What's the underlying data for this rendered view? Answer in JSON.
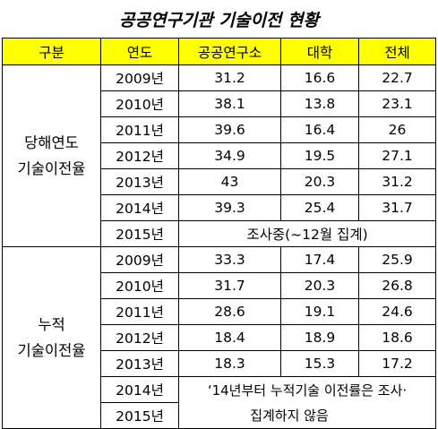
{
  "title": "공공연구기관 기술이전 현황",
  "headers": [
    "구분",
    "연도",
    "공공연구소",
    "대학",
    "전체"
  ],
  "group1": {
    "label_line1": "당해연도",
    "label_line2": "기술이전율",
    "rows": [
      {
        "year": "2009년",
        "v1": "31.2",
        "v2": "16.6",
        "v3": "22.7"
      },
      {
        "year": "2010년",
        "v1": "38.1",
        "v2": "13.8",
        "v3": "23.1"
      },
      {
        "year": "2011년",
        "v1": "39.6",
        "v2": "16.4",
        "v3": "26"
      },
      {
        "year": "2012년",
        "v1": "34.9",
        "v2": "19.5",
        "v3": "27.1"
      },
      {
        "year": "2013년",
        "v1": "43",
        "v2": "20.3",
        "v3": "31.2"
      },
      {
        "year": "2014년",
        "v1": "39.3",
        "v2": "25.4",
        "v3": "31.7"
      }
    ],
    "last_year": "2015년",
    "last_note": "조사중(~12월 집계)"
  },
  "group2": {
    "label_line1": "누적",
    "label_line2": "기술이전율",
    "rows": [
      {
        "year": "2009년",
        "v1": "33.3",
        "v2": "17.4",
        "v3": "25.9"
      },
      {
        "year": "2010년",
        "v1": "31.7",
        "v2": "20.3",
        "v3": "26.8"
      },
      {
        "year": "2011년",
        "v1": "28.6",
        "v2": "19.1",
        "v3": "24.6"
      },
      {
        "year": "2012년",
        "v1": "18.4",
        "v2": "18.9",
        "v3": "18.6"
      },
      {
        "year": "2013년",
        "v1": "18.3",
        "v2": "15.3",
        "v3": "17.2"
      }
    ],
    "note_years": [
      "2014년",
      "2015년"
    ],
    "note_line1": "‘14년부터 누적기술 이전률은 조사·",
    "note_line2": "집계하지 않음"
  }
}
